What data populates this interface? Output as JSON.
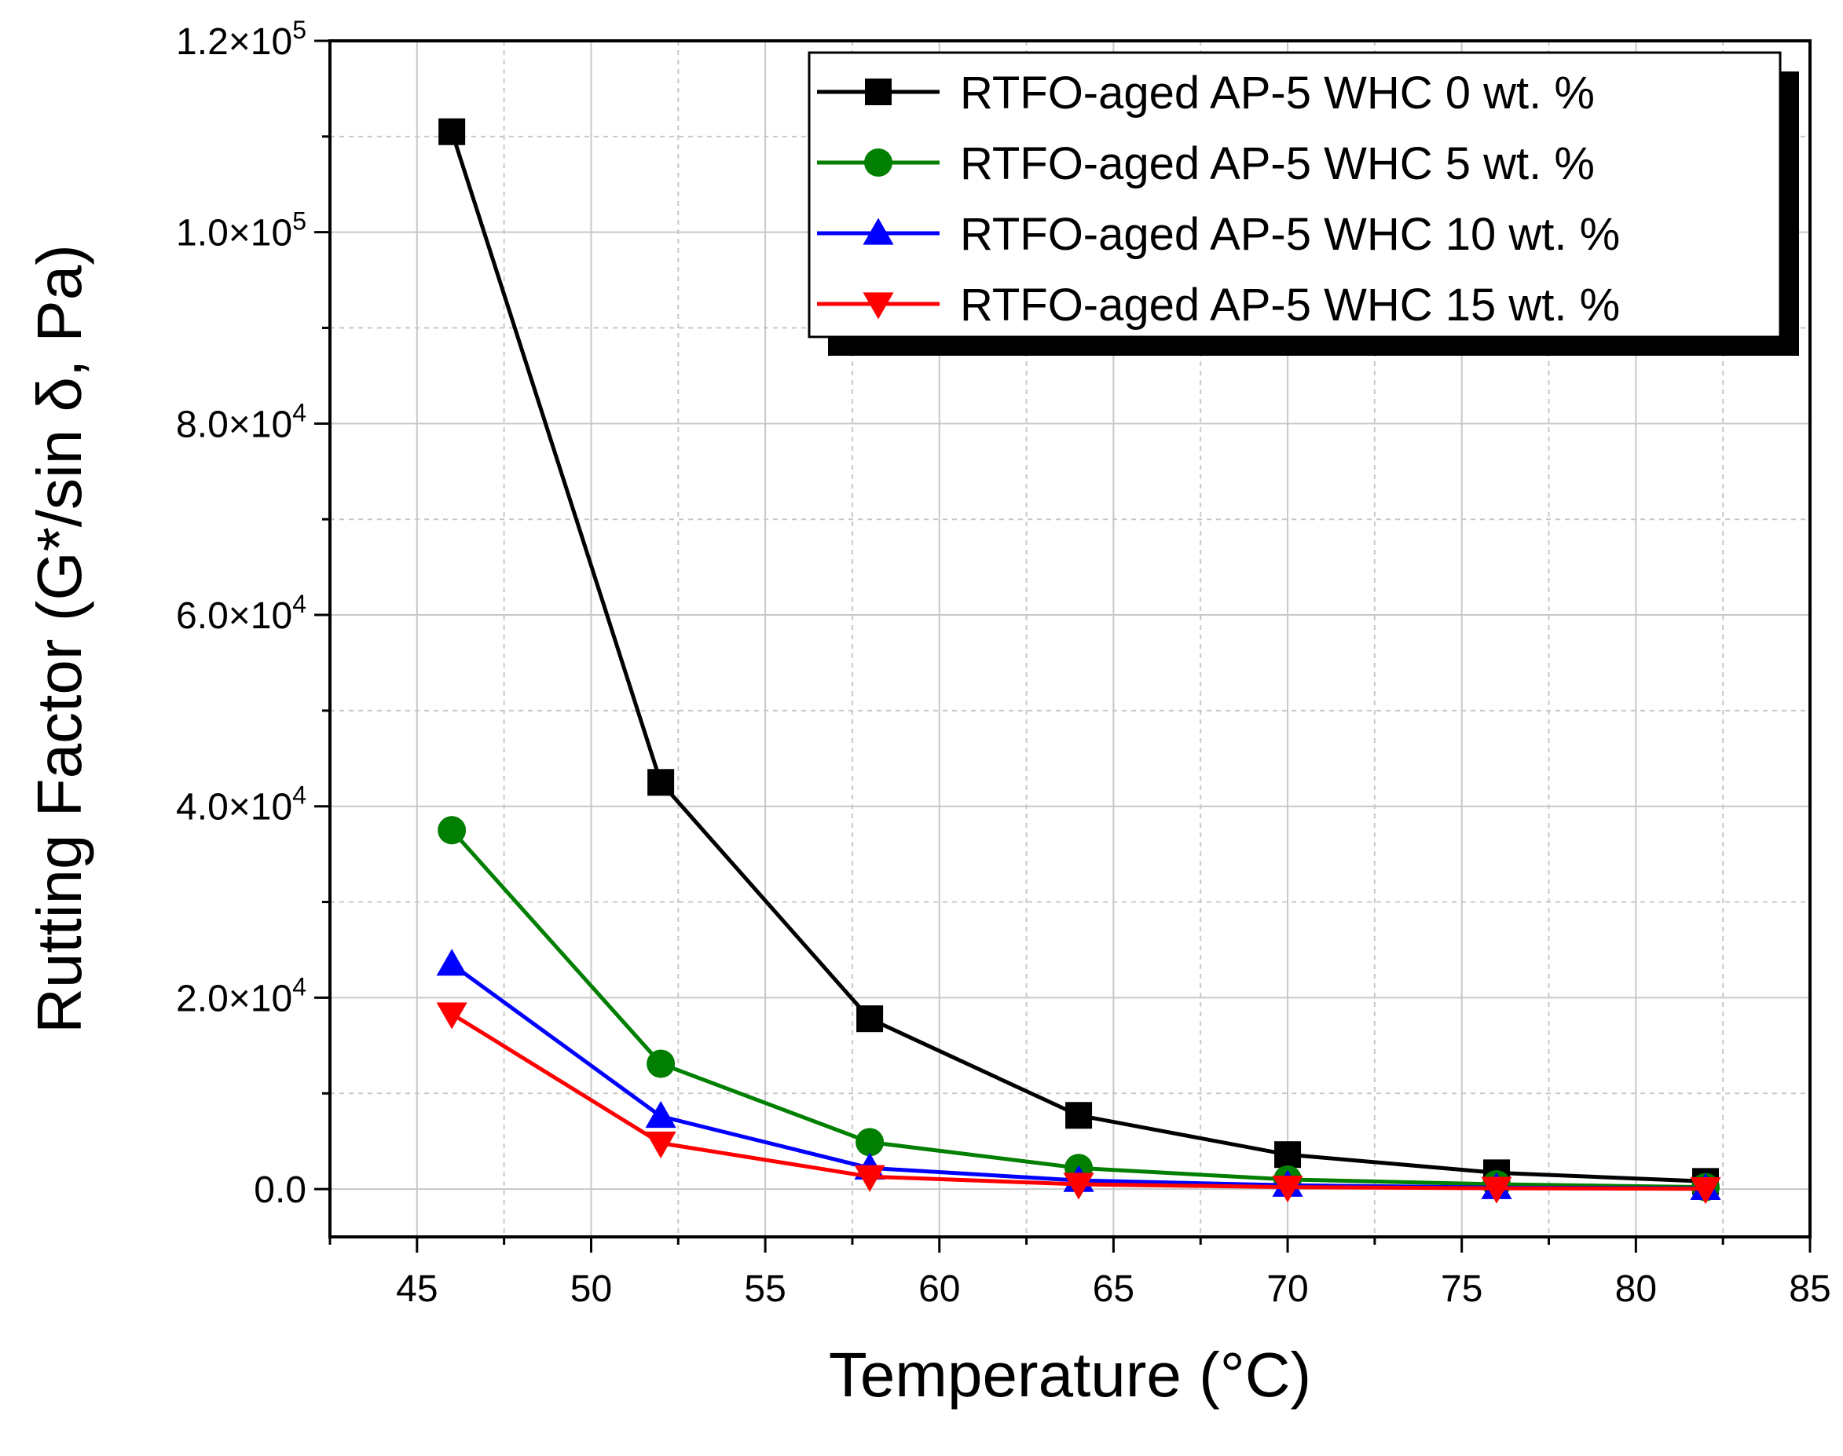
{
  "chart_data": {
    "type": "line",
    "title": "",
    "xlabel": "Temperature (°C)",
    "ylabel": "Rutting Factor (G*/sin δ, Pa)",
    "xlim": [
      42.5,
      85
    ],
    "ylim": [
      -5000,
      120000
    ],
    "grid": true,
    "legend_position": "top-right",
    "x_ticks": [
      {
        "value": 45,
        "label": "45"
      },
      {
        "value": 50,
        "label": "50"
      },
      {
        "value": 55,
        "label": "55"
      },
      {
        "value": 60,
        "label": "60"
      },
      {
        "value": 65,
        "label": "65"
      },
      {
        "value": 70,
        "label": "70"
      },
      {
        "value": 75,
        "label": "75"
      },
      {
        "value": 80,
        "label": "80"
      },
      {
        "value": 85,
        "label": "85"
      }
    ],
    "y_ticks": [
      {
        "value": 0,
        "mantissa": "0.0",
        "exp": ""
      },
      {
        "value": 20000,
        "mantissa": "2.0×10",
        "exp": "4"
      },
      {
        "value": 40000,
        "mantissa": "4.0×10",
        "exp": "4"
      },
      {
        "value": 60000,
        "mantissa": "6.0×10",
        "exp": "4"
      },
      {
        "value": 80000,
        "mantissa": "8.0×10",
        "exp": "4"
      },
      {
        "value": 100000,
        "mantissa": "1.0×10",
        "exp": "5"
      },
      {
        "value": 120000,
        "mantissa": "1.2×10",
        "exp": "5"
      }
    ],
    "x": [
      46,
      52,
      58,
      64,
      70,
      76,
      82
    ],
    "series": [
      {
        "name": "RTFO-aged AP-5 WHC 0 wt. %",
        "color": "#000000",
        "marker": "square",
        "values": [
          110500,
          42500,
          17800,
          7700,
          3600,
          1700,
          800
        ]
      },
      {
        "name": "RTFO-aged AP-5 WHC 5 wt. %",
        "color": "#007f00",
        "marker": "circle",
        "values": [
          37500,
          13100,
          4900,
          2200,
          1000,
          500,
          200
        ]
      },
      {
        "name": "RTFO-aged AP-5 WHC 10 wt. %",
        "color": "#0000ff",
        "marker": "triangle-up",
        "values": [
          23500,
          7600,
          2200,
          900,
          400,
          150,
          60
        ]
      },
      {
        "name": "RTFO-aged AP-5 WHC 15 wt. %",
        "color": "#ff0000",
        "marker": "triangle-down",
        "values": [
          18300,
          4800,
          1300,
          500,
          200,
          80,
          30
        ]
      }
    ]
  }
}
